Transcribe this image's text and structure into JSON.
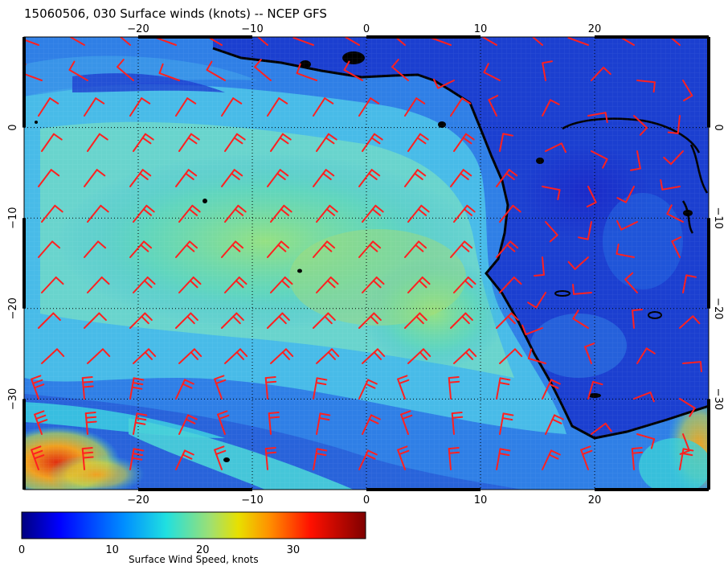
{
  "title": "15060506, 030 Surface winds (knots) -- NCEP GFS",
  "map": {
    "lon_range": [
      -30,
      30
    ],
    "lat_range": [
      -40,
      10
    ],
    "lon_ticks": [
      -20,
      -10,
      0,
      10,
      20
    ],
    "lon_tick_labels": [
      "−20",
      "−10",
      "0",
      "10",
      "20"
    ],
    "lat_ticks": [
      0,
      -10,
      -20,
      -30
    ],
    "lat_tick_labels": [
      "0",
      "−10",
      "−20",
      "−30"
    ],
    "grid": "dotted",
    "coastline_color": "#000000",
    "barb_color": "#ff2020"
  },
  "colorbar": {
    "title": "Surface Wind Speed, knots",
    "ticks": [
      0,
      10,
      20,
      30
    ],
    "tick_labels": [
      "0",
      "10",
      "20",
      "30"
    ],
    "range": [
      0,
      38
    ],
    "colormap": "jet"
  }
}
